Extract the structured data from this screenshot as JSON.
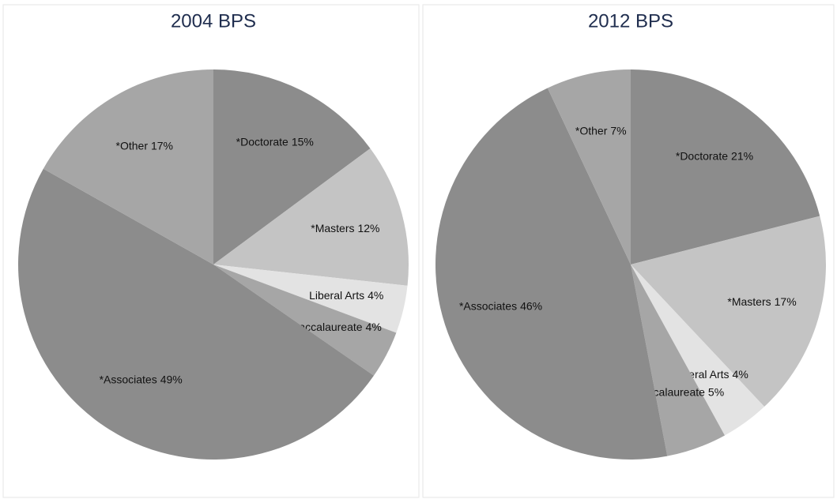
{
  "chart_data": [
    {
      "type": "pie",
      "title": "2004 BPS",
      "categories": [
        "*Doctorate",
        "*Masters",
        "Liberal Arts",
        "*Baccalaureate",
        "*Associates",
        "*Other"
      ],
      "values": [
        15,
        12,
        4,
        4,
        49,
        17
      ],
      "value_labels": [
        "15%",
        "12%",
        "4%",
        "4%",
        "49%",
        "17%"
      ],
      "colors": [
        "#8c8c8c",
        "#c4c4c4",
        "#e3e3e3",
        "#a6a6a6",
        "#8c8c8c",
        "#a6a6a6"
      ]
    },
    {
      "type": "pie",
      "title": "2012 BPS",
      "categories": [
        "*Doctorate",
        "*Masters",
        "Liberal Arts",
        "*Baccalaureate",
        "*Associates",
        "*Other"
      ],
      "values": [
        21,
        17,
        4,
        5,
        46,
        7
      ],
      "value_labels": [
        "21%",
        "17%",
        "4%",
        "5%",
        "46%",
        "7%"
      ],
      "colors": [
        "#8c8c8c",
        "#c4c4c4",
        "#e3e3e3",
        "#a6a6a6",
        "#8c8c8c",
        "#a6a6a6"
      ]
    }
  ]
}
